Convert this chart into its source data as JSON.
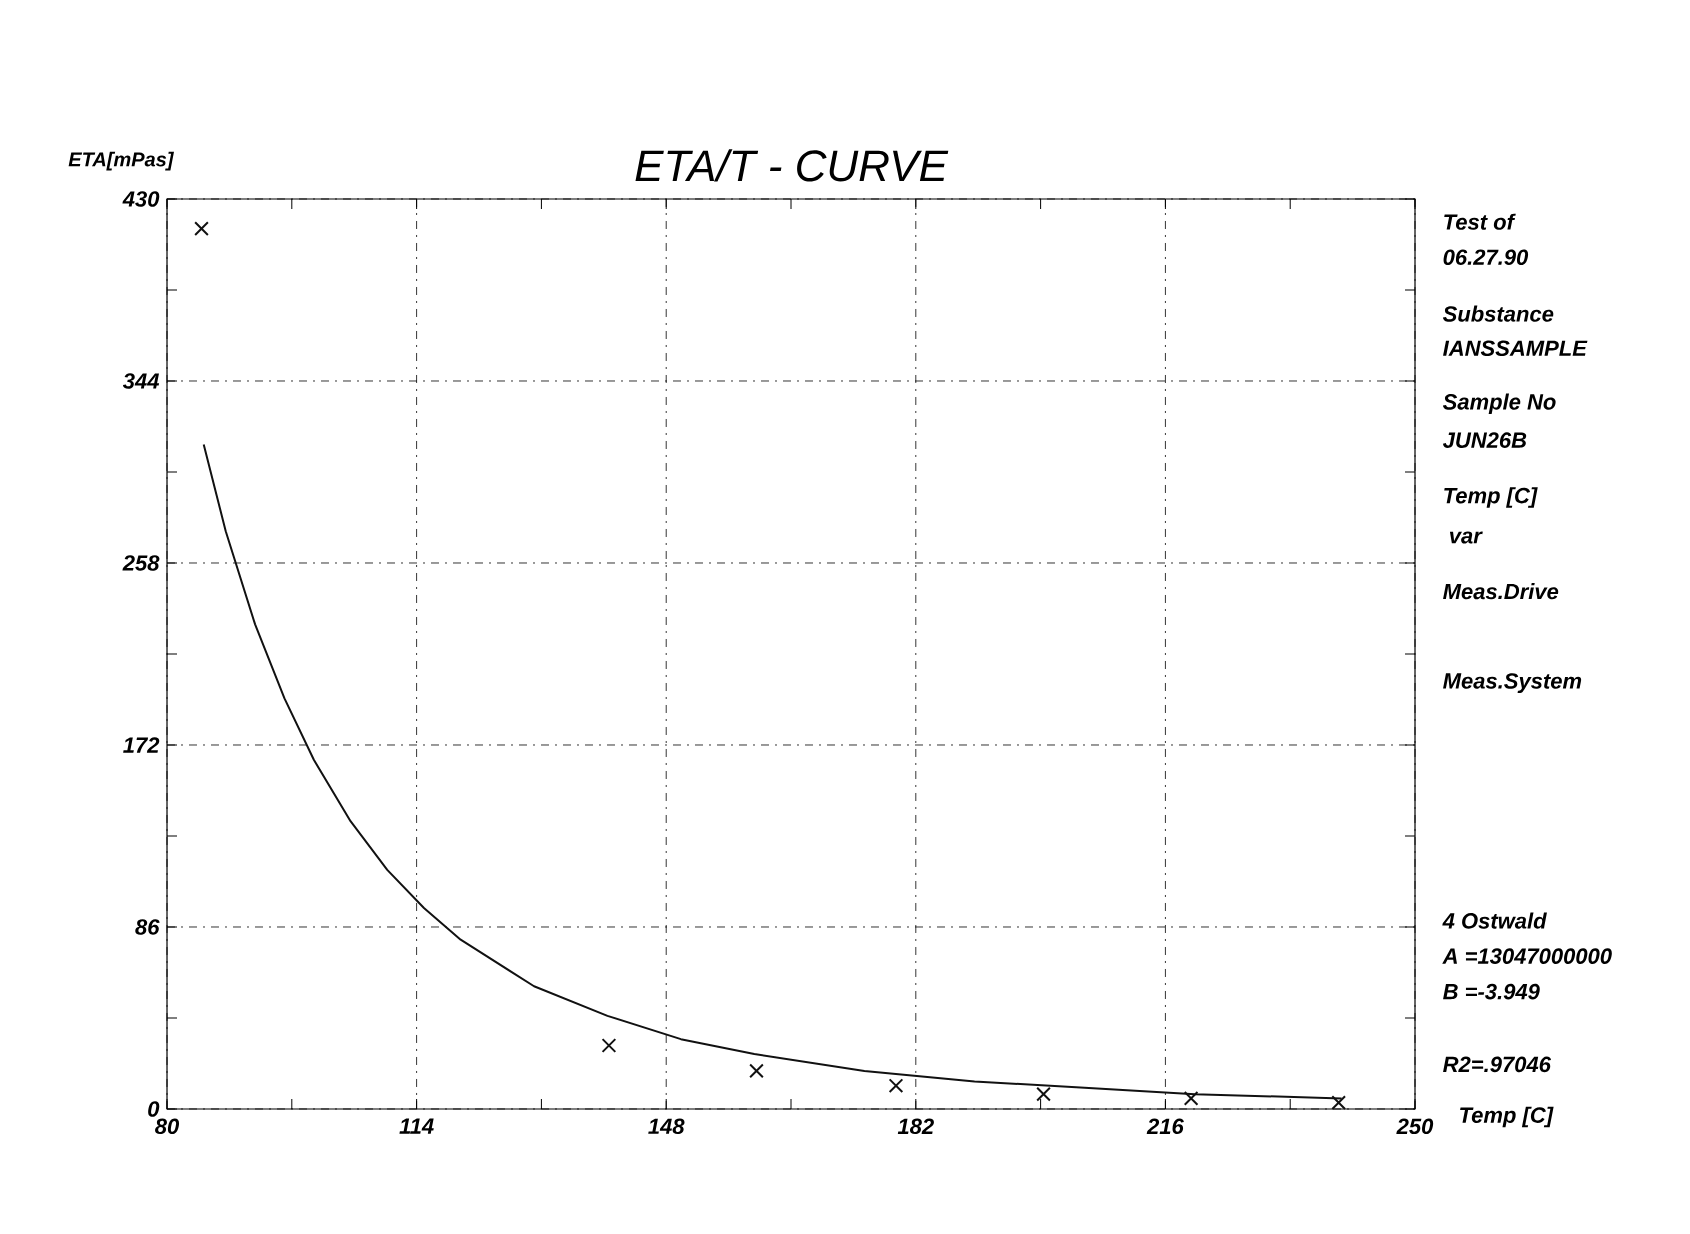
{
  "chart_data": {
    "type": "scatter",
    "title": "ETA/T - CURVE",
    "xlabel": "Temp [C]",
    "ylabel": "ETA[mPas]",
    "xlim": [
      80,
      250
    ],
    "ylim": [
      0,
      430
    ],
    "xticks": [
      80,
      114,
      148,
      182,
      216,
      250
    ],
    "yticks": [
      0,
      86,
      172,
      258,
      344,
      430
    ],
    "grid": true,
    "series": [
      {
        "marker": "cross",
        "color": "#111111",
        "x": [
          84.7,
          140.2,
          160.3,
          179.3,
          199.4,
          219.5,
          239.6
        ],
        "values": [
          416,
          30,
          18,
          11,
          7,
          5,
          3
        ]
      },
      {
        "type": "line",
        "marker": "none",
        "line_style": "solid",
        "color": "#111111",
        "x": [
          85,
          88,
          92,
          96,
          100,
          105,
          110,
          115,
          120,
          130,
          140,
          150,
          160,
          175,
          190,
          205,
          220,
          240
        ],
        "values": [
          314,
          273,
          229,
          194,
          165,
          136,
          113,
          95,
          80,
          58,
          44,
          33,
          26,
          18,
          13,
          10,
          7,
          5
        ]
      }
    ],
    "annotations": [
      "Test of",
      "06.27.90",
      "Substance",
      "IANSSAMPLE",
      "Sample No",
      "JUN26B",
      "Temp [C]",
      " var",
      "Meas.Drive",
      "Meas.System",
      "4 Ostwald",
      "A =13047000000",
      "B =-3.949",
      "R2=.97046"
    ]
  }
}
